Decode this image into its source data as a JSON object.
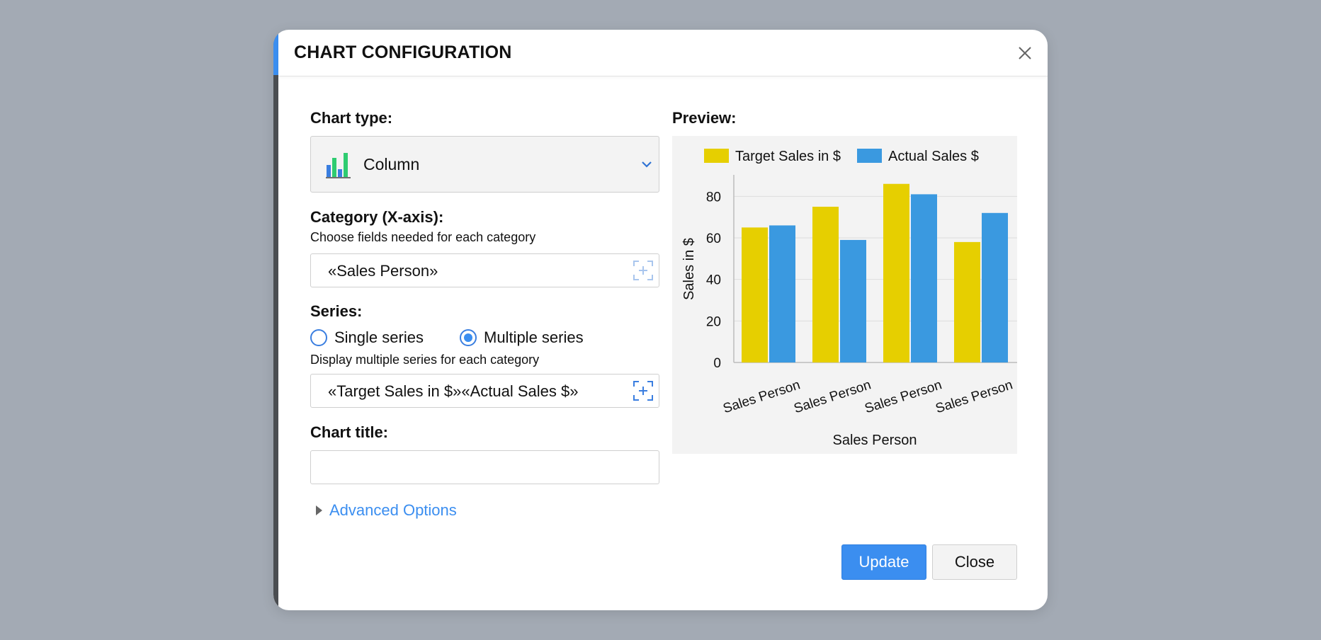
{
  "dialog": {
    "title": "CHART CONFIGURATION",
    "close_icon": "close-icon"
  },
  "chart_type": {
    "label": "Chart type:",
    "selected": "Column",
    "icon": "column-chart-icon"
  },
  "category": {
    "label": "Category (X-axis):",
    "hint": "Choose fields needed for each category",
    "value": "«Sales Person»",
    "add_icon": "add-field-icon"
  },
  "series": {
    "label": "Series:",
    "options": [
      "Single series",
      "Multiple series"
    ],
    "selected": "Multiple series",
    "hint": "Display multiple series for each category",
    "value": "«Target Sales in $»«Actual Sales $»",
    "add_icon": "add-field-icon"
  },
  "chart_title": {
    "label": "Chart title:",
    "value": ""
  },
  "advanced": {
    "label": "Advanced Options"
  },
  "preview": {
    "label": "Preview:"
  },
  "buttons": {
    "update": "Update",
    "close": "Close"
  },
  "colors": {
    "accent": "#3b8ef0",
    "target": "#e6cf00",
    "actual": "#3a99e0"
  },
  "chart_data": {
    "type": "bar",
    "categories": [
      "Sales Person",
      "Sales Person",
      "Sales Person",
      "Sales Person"
    ],
    "series": [
      {
        "name": "Target Sales in $",
        "values": [
          65,
          75,
          86,
          58
        ],
        "color": "#e6cf00"
      },
      {
        "name": "Actual Sales $",
        "values": [
          66,
          59,
          81,
          72
        ],
        "color": "#3a99e0"
      }
    ],
    "title": "",
    "xlabel": "Sales Person",
    "ylabel": "Sales in $",
    "ylim": [
      0,
      90
    ],
    "yticks": [
      0,
      20,
      40,
      60,
      80
    ],
    "grid": true,
    "legend": "top"
  }
}
